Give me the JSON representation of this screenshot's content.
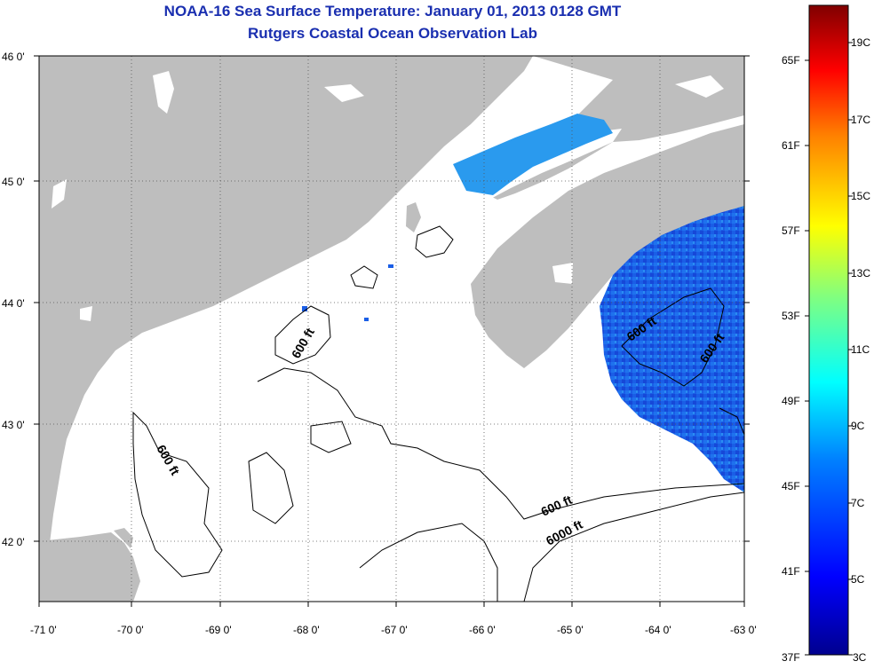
{
  "header": {
    "title": "NOAA-16 Sea Surface Temperature:  January 01, 2013 0128 GMT",
    "subtitle": "Rutgers Coastal Ocean Observation Lab"
  },
  "axes": {
    "lat_labels": [
      "46 0'",
      "45 0'",
      "44 0'",
      "43 0'",
      "42 0'"
    ],
    "lon_labels": [
      "-71 0'",
      "-70 0'",
      "-69 0'",
      "-68 0'",
      "-67 0'",
      "-66 0'",
      "-65 0'",
      "-64 0'",
      "-63 0'"
    ]
  },
  "contours": {
    "labels": [
      "600 ft",
      "600 ft",
      "600 ft",
      "600 ft",
      "6000 ft"
    ]
  },
  "colorbar": {
    "fahrenheit": [
      "65F",
      "61F",
      "57F",
      "53F",
      "49F",
      "45F",
      "41F",
      "37F"
    ],
    "celsius": [
      "19C",
      "17C",
      "15C",
      "13C",
      "11C",
      "9C",
      "7C",
      "5C",
      "3C"
    ],
    "colors": [
      "#00008f",
      "#0000ff",
      "#0080ff",
      "#00ffff",
      "#80ff80",
      "#ffff00",
      "#ff8000",
      "#ff0000",
      "#800000"
    ]
  },
  "colors": {
    "land": "#bebebe",
    "ocean": "#ffffff",
    "sst_patch": "#1560e8",
    "sst_light": "#2aa8f0"
  }
}
